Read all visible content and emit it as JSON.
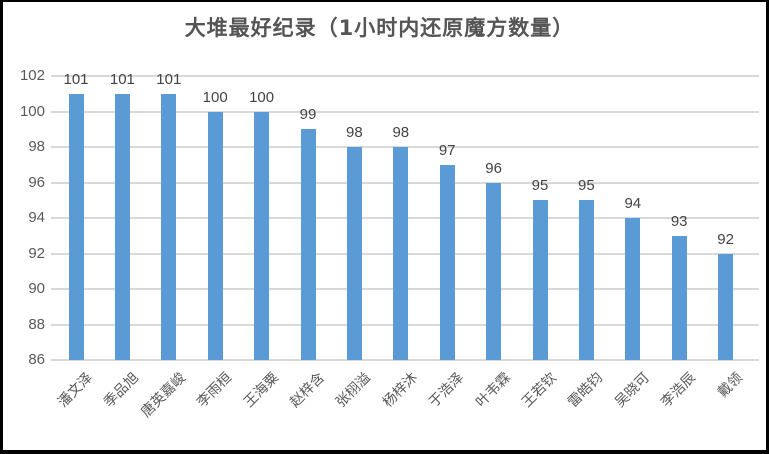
{
  "chart_data": {
    "type": "bar",
    "title": "大堆最好纪录（1小时内还原魔方数量）",
    "categories": [
      "潘文泽",
      "季品旭",
      "唐英嘉峻",
      "李雨桓",
      "王海粟",
      "赵梓含",
      "张栩溢",
      "杨梓沐",
      "于浩泽",
      "叶韦霖",
      "王若钦",
      "雷皓钧",
      "吴晓可",
      "李浩辰",
      "戴领"
    ],
    "values": [
      101,
      101,
      101,
      100,
      100,
      99,
      98,
      98,
      97,
      96,
      95,
      95,
      94,
      93,
      92
    ],
    "xlabel": "",
    "ylabel": "",
    "ylim": [
      86,
      102
    ],
    "ytick_step": 2,
    "yticks": [
      86,
      88,
      90,
      92,
      94,
      96,
      98,
      100,
      102
    ],
    "grid": true,
    "legend": false,
    "data_labels": true,
    "bar_color": "#5b9bd5",
    "gridline_color": "#d9d9d9",
    "axis_label_color": "#595959",
    "data_label_color": "#444444",
    "title_color": "#555555"
  }
}
